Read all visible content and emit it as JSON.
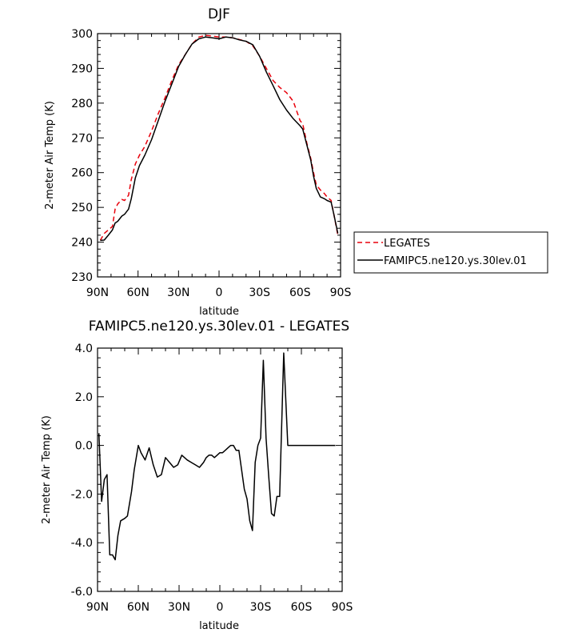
{
  "chart_data": [
    {
      "type": "line",
      "title": "DJF",
      "xlabel": "latitude",
      "ylabel": "2-meter Air Temp (K)",
      "xlim": [
        90,
        -90
      ],
      "ylim": [
        230,
        300
      ],
      "xticks": [
        90,
        60,
        30,
        0,
        -30,
        -60,
        -90
      ],
      "xtick_labels": [
        "90N",
        "60N",
        "30N",
        "0",
        "30S",
        "60S",
        "90S"
      ],
      "yticks": [
        230,
        240,
        250,
        260,
        270,
        280,
        290,
        300
      ],
      "ytick_labels": [
        "230",
        "240",
        "250",
        "260",
        "270",
        "280",
        "290",
        "300"
      ],
      "legend_position": "right",
      "series": [
        {
          "name": "LEGATES",
          "color": "#e8000b",
          "style": "dashed",
          "x": [
            88,
            85,
            82,
            79,
            77,
            75,
            72,
            70,
            67,
            65,
            62,
            59,
            55,
            50,
            45,
            40,
            35,
            30,
            25,
            20,
            15,
            10,
            5,
            0,
            -5,
            -10,
            -15,
            -20,
            -25,
            -30,
            -35,
            -40,
            -45,
            -50,
            -55,
            -60,
            -62,
            -65,
            -68,
            -70,
            -72,
            -75,
            -78,
            -80,
            -83,
            -85,
            -88
          ],
          "y": [
            240.5,
            242.5,
            243.5,
            244.5,
            249.5,
            251,
            252.3,
            252,
            253.5,
            258,
            262.5,
            265,
            267.5,
            272,
            277,
            281.5,
            286.5,
            291,
            294,
            297,
            299,
            299.5,
            299.3,
            299,
            299,
            298.8,
            298.3,
            297.8,
            296.5,
            293.5,
            290,
            286.5,
            284.5,
            283,
            280.5,
            275,
            274,
            268.5,
            264,
            260,
            256.5,
            255,
            254,
            253,
            252,
            248,
            242
          ]
        },
        {
          "name": "FAMIPC5.ne120.ys.30lev.01",
          "color": "#000000",
          "style": "solid",
          "x": [
            88,
            85,
            82,
            79,
            77,
            75,
            72,
            70,
            67,
            65,
            62,
            59,
            55,
            50,
            45,
            40,
            35,
            30,
            25,
            20,
            15,
            10,
            5,
            0,
            -5,
            -10,
            -15,
            -20,
            -25,
            -30,
            -35,
            -40,
            -45,
            -50,
            -55,
            -60,
            -62,
            -65,
            -68,
            -70,
            -72,
            -75,
            -78,
            -80,
            -83,
            -85,
            -88
          ],
          "y": [
            240.5,
            240.6,
            242,
            243.5,
            245.5,
            246,
            247.5,
            248,
            249.5,
            252.5,
            258.5,
            262,
            265,
            269.5,
            275,
            280.5,
            285.5,
            290.5,
            294,
            297,
            298.5,
            299,
            298.8,
            298.5,
            299,
            298.8,
            298.2,
            297.8,
            296.8,
            293.5,
            289,
            285,
            281,
            278,
            275.5,
            273.5,
            272.5,
            268,
            263.5,
            259,
            255.5,
            253,
            252.5,
            252,
            251.5,
            248,
            242.5
          ]
        }
      ]
    },
    {
      "type": "line",
      "title": "FAMIPC5.ne120.ys.30lev.01 - LEGATES",
      "xlabel": "latitude",
      "ylabel": "2-meter Air Temp (K)",
      "xlim": [
        90,
        -90
      ],
      "ylim": [
        -6.0,
        4.0
      ],
      "xticks": [
        90,
        60,
        30,
        0,
        -30,
        -60,
        -90
      ],
      "xtick_labels": [
        "90N",
        "60N",
        "30N",
        "0",
        "30S",
        "60S",
        "90S"
      ],
      "yticks": [
        -6.0,
        -4.0,
        -2.0,
        0.0,
        2.0,
        4.0
      ],
      "ytick_labels": [
        "-6.0",
        "-4.0",
        "-2.0",
        "0.0",
        "2.0",
        "4.0"
      ],
      "series": [
        {
          "color": "#000000",
          "style": "solid",
          "x": [
            89,
            87,
            85,
            83,
            81,
            79,
            77,
            75,
            73,
            70,
            68,
            65,
            63,
            60,
            58,
            55,
            52,
            49,
            46,
            43,
            40,
            37,
            34,
            31,
            28,
            26,
            24,
            21,
            18,
            15,
            12,
            10,
            8,
            6,
            4,
            2,
            0,
            -2,
            -4,
            -6,
            -8,
            -10,
            -12,
            -14,
            -16,
            -18,
            -20,
            -22,
            -24,
            -26,
            -28,
            -30,
            -32,
            -34,
            -36,
            -38,
            -40,
            -42,
            -44,
            -47,
            -50,
            -53,
            -56,
            -59,
            -61,
            -63,
            -65,
            -67,
            -69,
            -72,
            -75,
            -77,
            -79,
            -81,
            -83,
            -85,
            -87,
            -89
          ],
          "y": [
            0.5,
            -2.3,
            -1.4,
            -1.2,
            -4.5,
            -4.5,
            -4.7,
            -3.7,
            -3.1,
            -3.0,
            -2.9,
            -1.9,
            -1.0,
            0.0,
            -0.3,
            -0.6,
            -0.1,
            -0.8,
            -1.3,
            -1.2,
            -0.5,
            -0.7,
            -0.9,
            -0.8,
            -0.4,
            -0.5,
            -0.6,
            -0.7,
            -0.8,
            -0.9,
            -0.7,
            -0.5,
            -0.4,
            -0.4,
            -0.5,
            -0.4,
            -0.3,
            -0.3,
            -0.2,
            -0.1,
            0.0,
            0.0,
            -0.2,
            -0.2,
            -1.0,
            -1.8,
            -2.2,
            -3.1,
            -3.5,
            -0.7,
            0.0,
            0.3,
            3.5,
            0.3,
            -1.3,
            -2.8,
            -2.9,
            -2.1,
            -2.1,
            3.8,
            0.0,
            0.0,
            0.0,
            0.0,
            0.0,
            0.0,
            0.0,
            0.0,
            0.0,
            0.0,
            0.0,
            0.0,
            0.0,
            0.0,
            0.0,
            0.0,
            0.0,
            0.0
          ]
        }
      ]
    }
  ]
}
